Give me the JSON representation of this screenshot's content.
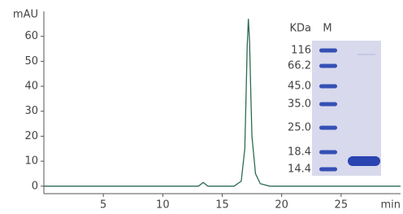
{
  "chart_data": {
    "type": "line",
    "y_label": "mAU",
    "x_label": "min",
    "xlim": [
      0,
      30
    ],
    "ylim": [
      -3,
      70
    ],
    "xticks": [
      5,
      10,
      15,
      20,
      25
    ],
    "yticks": [
      0,
      10,
      20,
      30,
      40,
      50,
      60
    ],
    "series": [
      {
        "color": "#2e6b50",
        "x": [
          0,
          5,
          10,
          13,
          13.4,
          13.8,
          16,
          16.6,
          16.9,
          17.0,
          17.1,
          17.2,
          17.3,
          17.4,
          17.5,
          17.8,
          18.2,
          19,
          25,
          30
        ],
        "values": [
          0,
          0,
          0,
          0,
          1.5,
          0,
          0,
          2,
          15,
          35,
          56,
          67,
          58,
          38,
          20,
          5,
          1,
          0,
          0,
          0
        ]
      }
    ]
  },
  "inset": {
    "unit_label": "KDa",
    "lane_label": "M",
    "markers": [
      "116",
      "66.2",
      "45.0",
      "35.0",
      "25.0",
      "18.4",
      "14.4"
    ]
  }
}
